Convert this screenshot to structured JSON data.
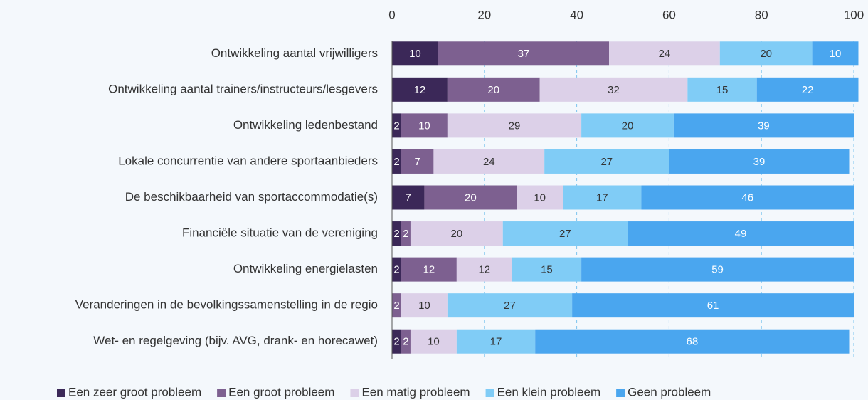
{
  "chart_data": {
    "type": "stacked-bar-horizontal",
    "categories": [
      "Ontwikkeling aantal vrijwilligers",
      "Ontwikkeling aantal trainers/instructeurs/lesgevers",
      "Ontwikkeling ledenbestand",
      "Lokale concurrentie van andere sportaanbieders",
      "De beschikbaarheid van sportaccommodatie(s)",
      "Financiële situatie van de vereniging",
      "Ontwikkeling energielasten",
      "Veranderingen in de bevolkingssamenstelling in de regio",
      "Wet- en regelgeving (bijv. AVG, drank- en horecawet)"
    ],
    "series": [
      {
        "name": "Een zeer groot probleem",
        "color": "#3b2858",
        "values": [
          10,
          12,
          2,
          2,
          7,
          2,
          2,
          0,
          2
        ]
      },
      {
        "name": "Een groot probleem",
        "color": "#7d6090",
        "values": [
          37,
          20,
          10,
          7,
          20,
          2,
          12,
          2,
          2
        ]
      },
      {
        "name": "Een matig probleem",
        "color": "#dcd0e8",
        "values": [
          24,
          32,
          29,
          24,
          10,
          20,
          12,
          10,
          10
        ]
      },
      {
        "name": "Een klein probleem",
        "color": "#80ccf6",
        "values": [
          20,
          15,
          20,
          27,
          17,
          27,
          15,
          27,
          17
        ]
      },
      {
        "name": "Geen probleem",
        "color": "#4aa6ef",
        "values": [
          10,
          22,
          39,
          39,
          46,
          49,
          59,
          61,
          68
        ]
      }
    ],
    "xlim": [
      0,
      100
    ],
    "xticks": [
      0,
      20,
      40,
      60,
      80,
      100
    ],
    "grid": true,
    "legend": "bottom"
  }
}
